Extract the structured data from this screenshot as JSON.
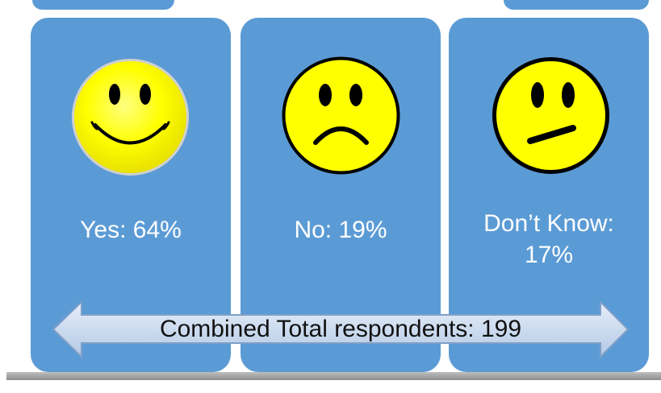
{
  "chart_data": {
    "type": "table",
    "categories": [
      "Yes",
      "No",
      "Don’t Know"
    ],
    "values": [
      64,
      19,
      17
    ],
    "labels": [
      "Yes: 64%",
      "No: 19%",
      "Don’t Know:",
      "17%"
    ],
    "total_text": "Combined Total respondents: 199"
  },
  "colors": {
    "card": "#5b9bd5",
    "face_yellow": "#ffff00",
    "arrow_fill": "#c9d9ee"
  },
  "icons": [
    "happy-face-icon",
    "sad-face-icon",
    "neutral-face-icon",
    "double-arrow-icon"
  ]
}
